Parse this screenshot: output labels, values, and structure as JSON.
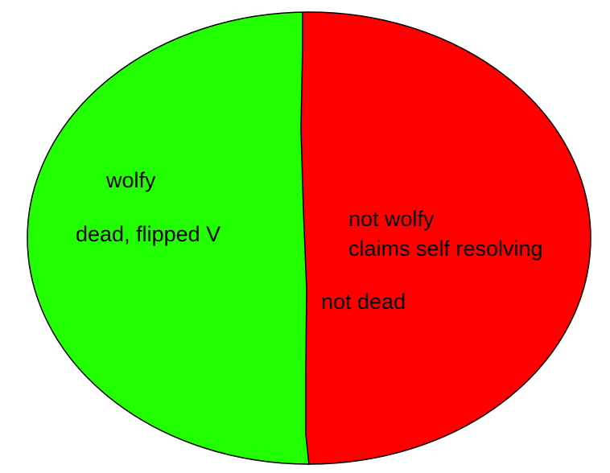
{
  "colors": {
    "left_half": "#22ff00",
    "right_half": "#ff0000",
    "outline": "#000000",
    "text": "#000000",
    "background": "#ffffff"
  },
  "left_region": {
    "label_1": "wolfy",
    "label_2": "dead, flipped V"
  },
  "right_region": {
    "label_1": "not wolfy",
    "label_2": "claims self resolving",
    "label_3": "not dead"
  }
}
